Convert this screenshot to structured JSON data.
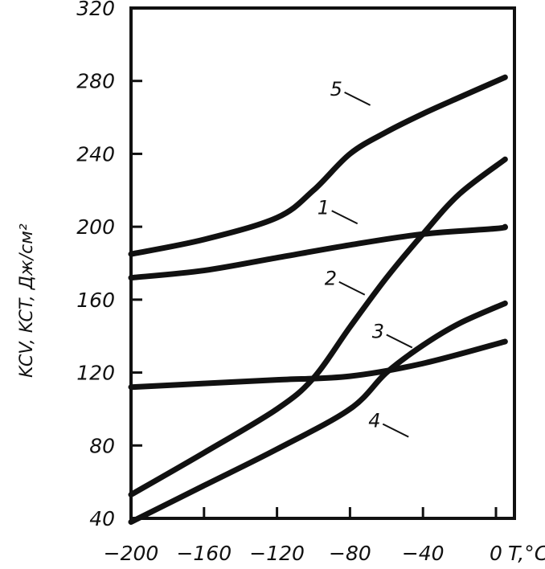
{
  "chart_data": {
    "type": "line",
    "title": "",
    "xlabel": "T,°C",
    "ylabel": "KCV, KCT, Дж/см²",
    "xlim": [
      -200,
      5
    ],
    "ylim": [
      40,
      320
    ],
    "xticks": [
      "−200",
      "−160",
      "−120",
      "−80",
      "−40",
      "0"
    ],
    "xtick_values": [
      -200,
      -160,
      -120,
      -80,
      -40,
      0
    ],
    "yticks": [
      "320",
      "280",
      "240",
      "200",
      "160",
      "120",
      "80",
      "40"
    ],
    "ytick_values": [
      320,
      280,
      240,
      200,
      160,
      120,
      80,
      40
    ],
    "grid": false,
    "series": [
      {
        "name": "5",
        "x": [
          -200,
          -160,
          -120,
          -100,
          -80,
          -60,
          -40,
          -20,
          5
        ],
        "y": [
          185,
          193,
          205,
          220,
          240,
          252,
          262,
          271,
          282
        ],
        "label_at": [
          -83,
          272
        ]
      },
      {
        "name": "1",
        "x": [
          -200,
          -160,
          -120,
          -80,
          -40,
          0,
          5
        ],
        "y": [
          172,
          176,
          183,
          190,
          196,
          199,
          200
        ],
        "label_at": [
          -90,
          207
        ]
      },
      {
        "name": "2",
        "x": [
          -200,
          -160,
          -120,
          -100,
          -80,
          -60,
          -40,
          -20,
          5
        ],
        "y": [
          53,
          76,
          100,
          117,
          145,
          172,
          196,
          218,
          237
        ],
        "label_at": [
          -86,
          168
        ]
      },
      {
        "name": "3",
        "x": [
          -200,
          -160,
          -120,
          -80,
          -40,
          5
        ],
        "y": [
          112,
          114,
          116,
          118,
          125,
          137
        ],
        "label_at": [
          -60,
          139
        ]
      },
      {
        "name": "4",
        "x": [
          -200,
          -160,
          -120,
          -80,
          -60,
          -40,
          -20,
          5
        ],
        "y": [
          38,
          58,
          78,
          100,
          120,
          135,
          147,
          158
        ],
        "label_at": [
          -62,
          90
        ]
      }
    ]
  }
}
